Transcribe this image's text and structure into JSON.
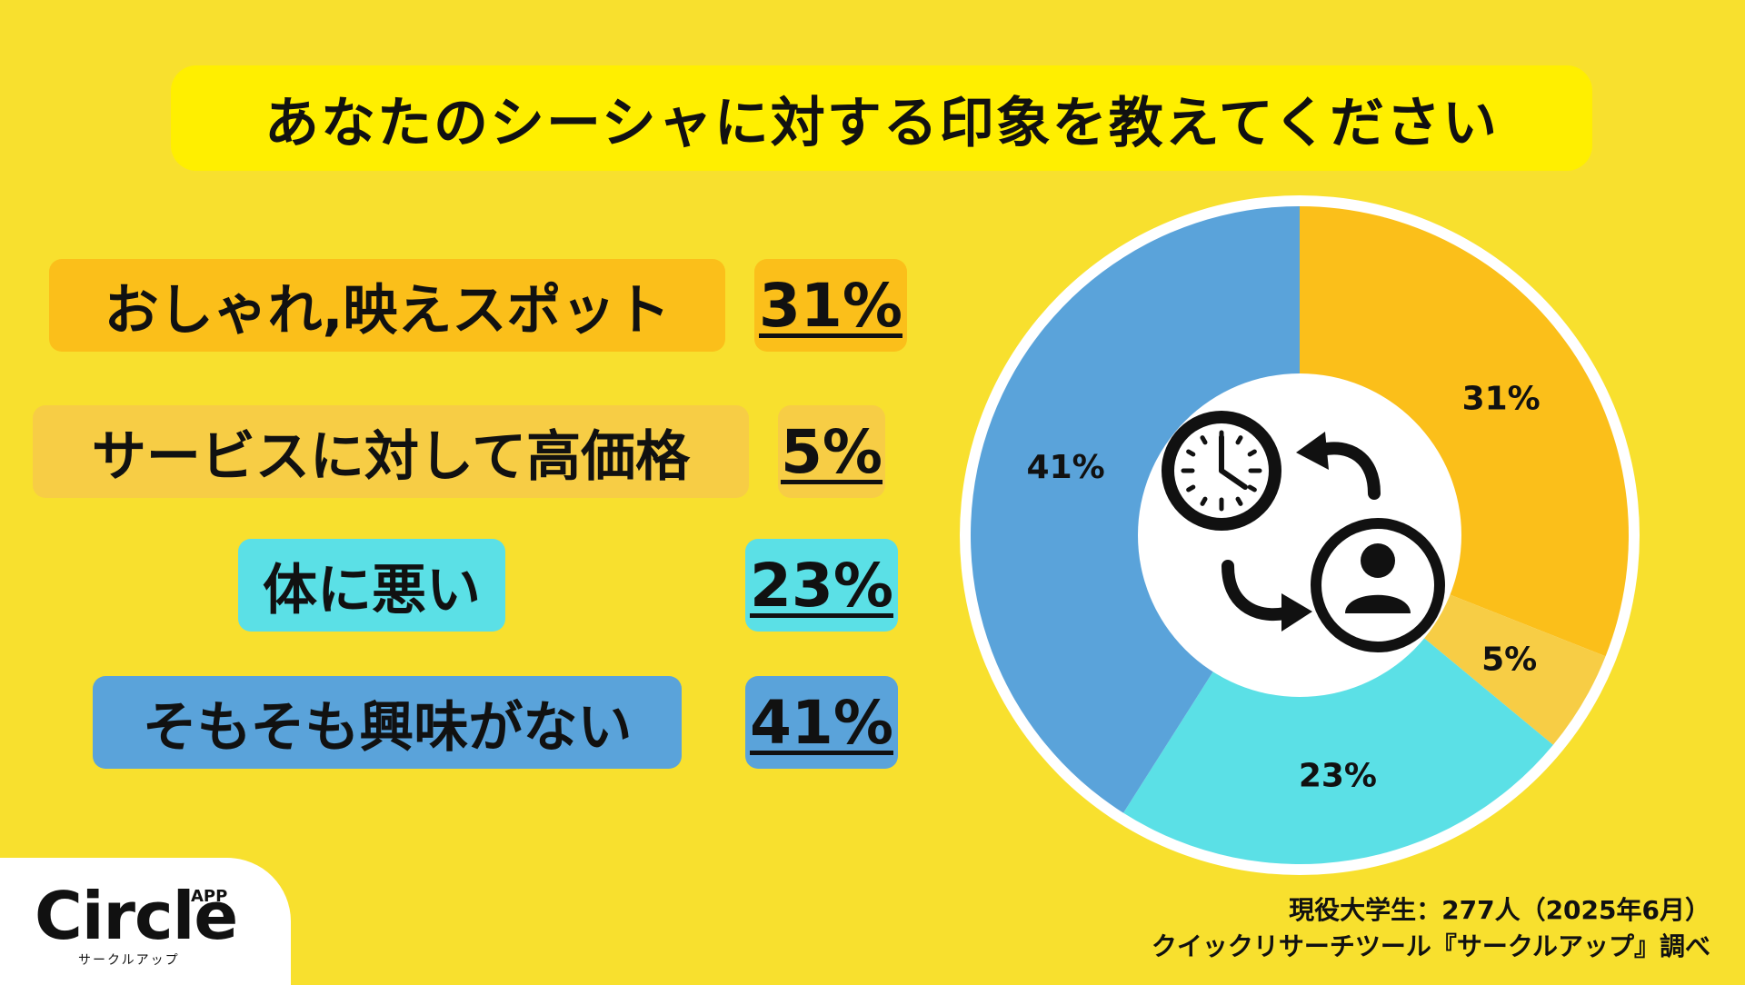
{
  "title": "あなたのシーシャに対する印象を教えてください",
  "colors": {
    "background": "#F8E02E",
    "title_box": "#FFEF00",
    "orange": "#FBBF1A",
    "light_orange": "#F7CD45",
    "cyan": "#5BE0E6",
    "blue": "#5AA3DA",
    "white": "#FFFFFF"
  },
  "rows": [
    {
      "label": "おしゃれ,映えスポット",
      "pct": "31%"
    },
    {
      "label": "サービスに対して高価格",
      "pct": "5%"
    },
    {
      "label": "体に悪い",
      "pct": "23%"
    },
    {
      "label": "そもそも興味がない",
      "pct": "41%"
    }
  ],
  "chart_data": {
    "type": "pie",
    "categories": [
      "おしゃれ,映えスポット",
      "サービスに対して高価格",
      "体に悪い",
      "そもそも興味がない"
    ],
    "values": [
      31,
      5,
      23,
      41
    ],
    "data_labels": [
      "31%",
      "5%",
      "23%",
      "41%"
    ],
    "colors": [
      "#FBBF1A",
      "#F7CD45",
      "#5BE0E6",
      "#5AA3DA"
    ],
    "center_icons": [
      "clock-icon",
      "curved-arrow-left-icon",
      "curved-arrow-right-icon",
      "person-icon"
    ]
  },
  "footer": {
    "line1": "現役大学生：277人（2025年6月）",
    "line2": "クイックリサーチツール『サークルアップ』調べ"
  },
  "logo": {
    "text": "Circle",
    "app": "APP",
    "sub": "サークルアップ"
  }
}
